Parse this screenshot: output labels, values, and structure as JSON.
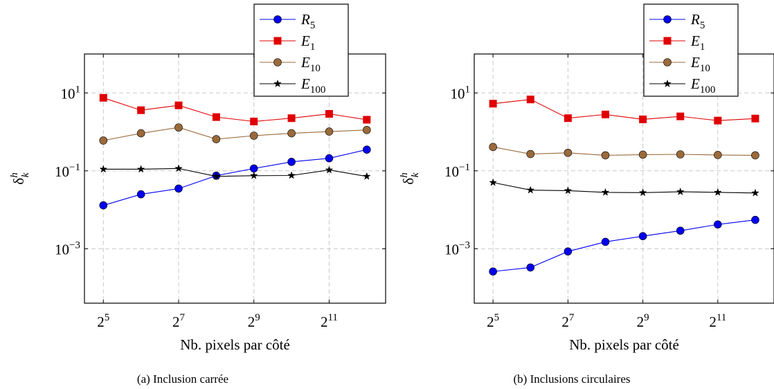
{
  "charts": [
    {
      "caption": "(a) Inclusion carrée",
      "chart_data": {
        "type": "line",
        "x_scale": "log2",
        "y_scale": "log10",
        "x": [
          32,
          64,
          128,
          256,
          512,
          1024,
          2048,
          4096
        ],
        "xticks": [
          {
            "base": "2",
            "exp": "5",
            "value": 32
          },
          {
            "base": "2",
            "exp": "7",
            "value": 128
          },
          {
            "base": "2",
            "exp": "9",
            "value": 512
          },
          {
            "base": "2",
            "exp": "11",
            "value": 2048
          }
        ],
        "yticks": [
          {
            "base": "10",
            "exp": "1",
            "value": 10
          },
          {
            "base": "10",
            "exp": "−1",
            "value": 0.1
          },
          {
            "base": "10",
            "exp": "−3",
            "value": 0.001
          }
        ],
        "xlabel": "Nb. pixels par côté",
        "ylabel": {
          "main": "δ",
          "sup": "h",
          "sub": "k"
        },
        "ylim": [
          4e-05,
          100
        ],
        "xlim": [
          22.6,
          5793
        ],
        "grid": true,
        "legend_position": "top-right",
        "series": [
          {
            "name": {
              "main": "R",
              "sub": "5"
            },
            "color": "#0000ee",
            "marker": "circle",
            "values": [
              0.013,
              0.025,
              0.035,
              0.075,
              0.115,
              0.17,
              0.21,
              0.35
            ]
          },
          {
            "name": {
              "main": "E",
              "sub": "1"
            },
            "color": "#e00000",
            "marker": "square",
            "values": [
              7.5,
              3.6,
              4.8,
              2.4,
              1.85,
              2.25,
              2.9,
              2.05
            ]
          },
          {
            "name": {
              "main": "E",
              "sub": "10"
            },
            "color": "#9b6a3b",
            "marker": "circle",
            "values": [
              0.6,
              0.92,
              1.3,
              0.65,
              0.8,
              0.92,
              1.02,
              1.12
            ]
          },
          {
            "name": {
              "main": "E",
              "sub": "100"
            },
            "color": "#000000",
            "marker": "star",
            "values": [
              0.11,
              0.11,
              0.115,
              0.072,
              0.075,
              0.076,
              0.105,
              0.072
            ]
          }
        ]
      }
    },
    {
      "caption": "(b) Inclusions circulaires",
      "chart_data": {
        "type": "line",
        "x_scale": "log2",
        "y_scale": "log10",
        "x": [
          32,
          64,
          128,
          256,
          512,
          1024,
          2048,
          4096
        ],
        "xticks": [
          {
            "base": "2",
            "exp": "5",
            "value": 32
          },
          {
            "base": "2",
            "exp": "7",
            "value": 128
          },
          {
            "base": "2",
            "exp": "9",
            "value": 512
          },
          {
            "base": "2",
            "exp": "11",
            "value": 2048
          }
        ],
        "yticks": [
          {
            "base": "10",
            "exp": "1",
            "value": 10
          },
          {
            "base": "10",
            "exp": "−1",
            "value": 0.1
          },
          {
            "base": "10",
            "exp": "−3",
            "value": 0.001
          }
        ],
        "xlabel": "Nb. pixels par côté",
        "ylabel": {
          "main": "δ",
          "sup": "h",
          "sub": "k"
        },
        "ylim": [
          4e-05,
          100
        ],
        "xlim": [
          22.6,
          5793
        ],
        "grid": true,
        "legend_position": "top-right",
        "series": [
          {
            "name": {
              "main": "R",
              "sub": "5"
            },
            "color": "#0000ee",
            "marker": "circle",
            "values": [
              0.00026,
              0.00033,
              0.00085,
              0.0015,
              0.0021,
              0.0029,
              0.0042,
              0.0055
            ]
          },
          {
            "name": {
              "main": "E",
              "sub": "1"
            },
            "color": "#e00000",
            "marker": "square",
            "values": [
              5.3,
              6.8,
              2.25,
              2.8,
              2.1,
              2.5,
              1.95,
              2.2
            ]
          },
          {
            "name": {
              "main": "E",
              "sub": "10"
            },
            "color": "#9b6a3b",
            "marker": "circle",
            "values": [
              0.41,
              0.27,
              0.29,
              0.25,
              0.26,
              0.265,
              0.255,
              0.25
            ]
          },
          {
            "name": {
              "main": "E",
              "sub": "100"
            },
            "color": "#000000",
            "marker": "star",
            "values": [
              0.05,
              0.032,
              0.031,
              0.028,
              0.0275,
              0.029,
              0.028,
              0.027
            ]
          }
        ]
      }
    }
  ]
}
